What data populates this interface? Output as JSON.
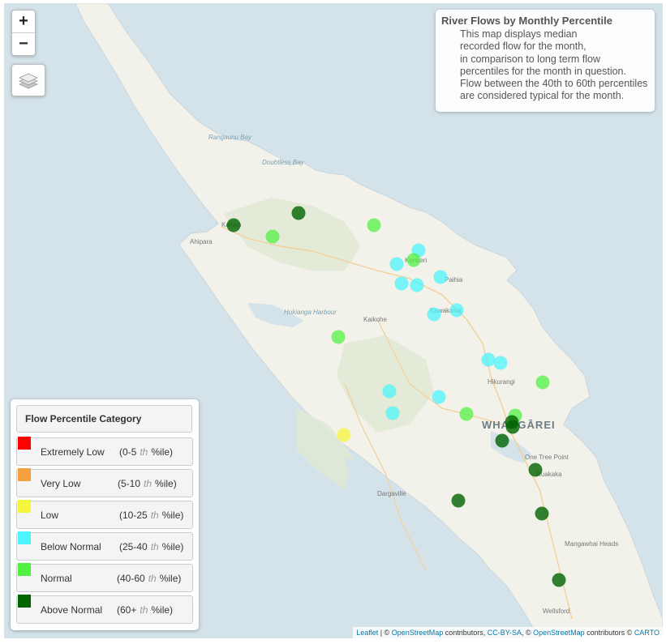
{
  "map": {
    "place_labels": [
      {
        "name": "Rangaunu Bay",
        "kind": "water"
      },
      {
        "name": "Doubtless Bay",
        "kind": "water"
      },
      {
        "name": "Kaitaia",
        "kind": "town"
      },
      {
        "name": "Ahipara",
        "kind": "town"
      },
      {
        "name": "Kerikeri",
        "kind": "town"
      },
      {
        "name": "Paihia",
        "kind": "town"
      },
      {
        "name": "Kawakawa",
        "kind": "town"
      },
      {
        "name": "Hokianga Harbour",
        "kind": "water"
      },
      {
        "name": "Kaikohe",
        "kind": "town"
      },
      {
        "name": "Hikurangi",
        "kind": "town"
      },
      {
        "name": "WHANGĀREI",
        "kind": "city"
      },
      {
        "name": "One Tree Point",
        "kind": "town"
      },
      {
        "name": "Ruakaka",
        "kind": "town"
      },
      {
        "name": "Dargaville",
        "kind": "town"
      },
      {
        "name": "Mangawhai Heads",
        "kind": "town"
      },
      {
        "name": "Wellsford",
        "kind": "town"
      }
    ],
    "colors": {
      "water": "#d4e3ea",
      "land": "#f2f1ea",
      "forest": "#dde9cf",
      "road": "#f4c98a"
    }
  },
  "controls": {
    "zoom_in": "+",
    "zoom_out": "−",
    "layers_icon": "layers-icon"
  },
  "info": {
    "title": "River Flows by Monthly Percentile",
    "lines": [
      "This map displays median",
      "recorded flow for the month,",
      "in comparison to long term flow",
      "percentiles for the month in question.",
      "Flow between the 40th to 60th percentiles",
      "are considered typical for the month."
    ]
  },
  "legend": {
    "title": "Flow Percentile Category",
    "items": [
      {
        "label": "Extremely Low",
        "range_start": "(0-5",
        "th": "th",
        "range_end": "%ile)",
        "color": "#ff0000"
      },
      {
        "label": "Very Low",
        "range_start": "(5-10",
        "th": "th",
        "range_end": "%ile)",
        "color": "#f7a13e"
      },
      {
        "label": "Low",
        "range_start": "(10-25",
        "th": "th",
        "range_end": "%ile)",
        "color": "#f5f53b"
      },
      {
        "label": "Below Normal",
        "range_start": "(25-40",
        "th": "th",
        "range_end": "%ile)",
        "color": "#4df4fb"
      },
      {
        "label": "Normal",
        "range_start": "(40-60",
        "th": "th",
        "range_end": "%ile)",
        "color": "#51f143"
      },
      {
        "label": "Above Normal",
        "range_start": "(60+",
        "th": "th",
        "range_end": "%ile)",
        "color": "#006400"
      }
    ]
  },
  "sites": [
    {
      "category": "Above Normal"
    },
    {
      "category": "Above Normal"
    },
    {
      "category": "Normal"
    },
    {
      "category": "Normal"
    },
    {
      "category": "Below Normal"
    },
    {
      "category": "Normal"
    },
    {
      "category": "Below Normal"
    },
    {
      "category": "Below Normal"
    },
    {
      "category": "Below Normal"
    },
    {
      "category": "Below Normal"
    },
    {
      "category": "Below Normal"
    },
    {
      "category": "Below Normal"
    },
    {
      "category": "Normal"
    },
    {
      "category": "Below Normal"
    },
    {
      "category": "Below Normal"
    },
    {
      "category": "Normal"
    },
    {
      "category": "Below Normal"
    },
    {
      "category": "Below Normal"
    },
    {
      "category": "Below Normal"
    },
    {
      "category": "Normal"
    },
    {
      "category": "Normal"
    },
    {
      "category": "Low"
    },
    {
      "category": "Above Normal"
    },
    {
      "category": "Above Normal"
    },
    {
      "category": "Above Normal"
    },
    {
      "category": "Above Normal"
    },
    {
      "category": "Above Normal"
    },
    {
      "category": "Above Normal"
    },
    {
      "category": "Above Normal"
    }
  ],
  "attribution": {
    "leaflet": "Leaflet",
    "sep1": " | © ",
    "osm1": "OpenStreetMap",
    "t1": " contributors, ",
    "ccbysa": "CC-BY-SA",
    "t2": ", © ",
    "osm2": "OpenStreetMap",
    "t3": " contributors © ",
    "carto": "CARTO"
  }
}
